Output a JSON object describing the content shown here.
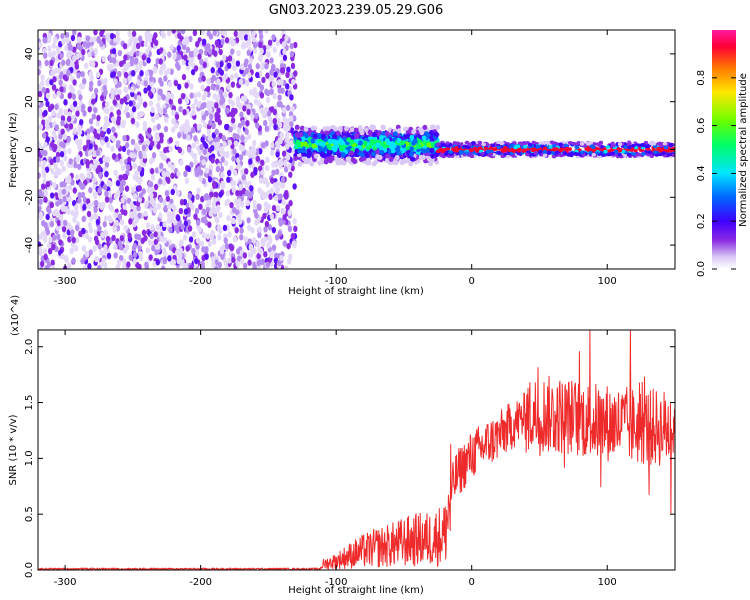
{
  "title": "GN03.2023.239.05.29.G06",
  "colors": {
    "snr_line": "#ee2a2a",
    "colorbar_stops": [
      "#ffffff",
      "#d9c8f5",
      "#8a2be2",
      "#3f00ff",
      "#0066ff",
      "#00e5ff",
      "#00ff66",
      "#6cff00",
      "#ffe600",
      "#ff7a00",
      "#ff0033",
      "#ff1aa0"
    ]
  },
  "chart_data": [
    {
      "type": "heatmap",
      "name": "spectrogram",
      "xlabel": "Height of straight line (km)",
      "ylabel": "Frequency (Hz)",
      "xlim": [
        -320,
        150
      ],
      "ylim": [
        -50,
        50
      ],
      "x_ticks": [
        "-300",
        "-200",
        "-100",
        "0",
        "100"
      ],
      "y_ticks": [
        "-40",
        "-20",
        "0",
        "20",
        "40"
      ],
      "colorbar": {
        "label": "Normalized spectral amplitude",
        "range": [
          0,
          1
        ],
        "ticks": [
          "0.0",
          "0.2",
          "0.4",
          "0.6",
          "0.8"
        ]
      },
      "regions": [
        {
          "x_range": [
            -320,
            -130
          ],
          "description_level": 0.15,
          "band": "broadband noise"
        },
        {
          "x_range": [
            -130,
            -25
          ],
          "center_freq": 2,
          "half_width": 7,
          "level": 0.5
        },
        {
          "x_range": [
            -25,
            150
          ],
          "center_freq": 0,
          "half_width": 3,
          "level": 0.9
        }
      ]
    },
    {
      "type": "line",
      "name": "snr",
      "xlabel": "Height of straight line (km)",
      "ylabel": "SNR (10 * v/v)",
      "y_multiplier": "(x10^4)",
      "xlim": [
        -320,
        150
      ],
      "ylim": [
        0,
        2.15
      ],
      "x_ticks": [
        "-300",
        "-200",
        "-100",
        "0",
        "100"
      ],
      "y_ticks": [
        "0.0",
        "0.5",
        "1.0",
        "1.5",
        "2.0"
      ],
      "series": [
        {
          "x": [
            -320,
            -300,
            -250,
            -200,
            -150,
            -112,
            -110,
            -100,
            -90,
            -80,
            -70,
            -60,
            -50,
            -40,
            -30,
            -20,
            -15,
            -12,
            -10,
            -5,
            0,
            10,
            20,
            30,
            40,
            50,
            60,
            70,
            80,
            90,
            100,
            110,
            120,
            130,
            140,
            150
          ],
          "y": [
            0.01,
            0.01,
            0.01,
            0.01,
            0.01,
            0.01,
            0.05,
            0.08,
            0.13,
            0.17,
            0.2,
            0.22,
            0.25,
            0.27,
            0.28,
            0.32,
            0.7,
            0.82,
            0.87,
            0.95,
            1.03,
            1.12,
            1.2,
            1.3,
            1.38,
            1.4,
            1.39,
            1.38,
            1.36,
            1.33,
            1.32,
            1.3,
            1.29,
            1.28,
            1.27,
            1.28
          ]
        }
      ]
    }
  ]
}
